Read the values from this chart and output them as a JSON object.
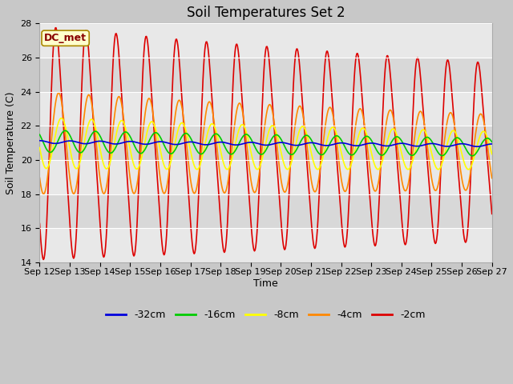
{
  "title": "Soil Temperatures Set 2",
  "xlabel": "Time",
  "ylabel": "Soil Temperature (C)",
  "annotation": "DC_met",
  "ylim": [
    14,
    28
  ],
  "legend_labels": [
    "-32cm",
    "-16cm",
    "-8cm",
    "-4cm",
    "-2cm"
  ],
  "legend_colors": [
    "#0000dd",
    "#00cc00",
    "#ffff00",
    "#ff8800",
    "#dd0000"
  ],
  "fig_bg": "#c8c8c8",
  "plot_bg": "#e8e8e8",
  "alt_band_color": "#d8d8d8",
  "grid_color": "#ffffff",
  "title_fontsize": 12,
  "axis_fontsize": 9,
  "tick_fontsize": 8
}
